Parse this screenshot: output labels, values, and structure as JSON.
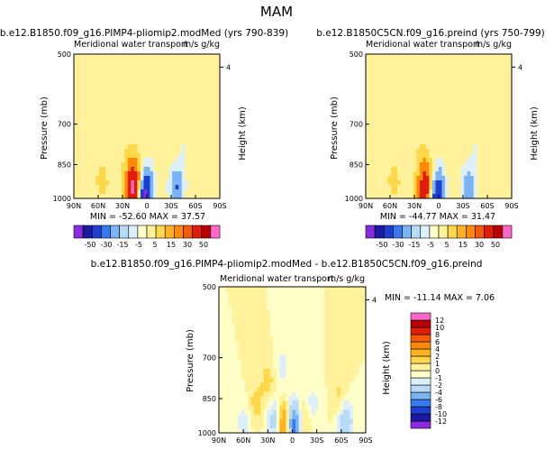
{
  "figure_title": "MAM",
  "colors": {
    "palette_main": [
      "#8a2be2",
      "#1a1aa0",
      "#1e3ed0",
      "#3a78f0",
      "#7ab4f5",
      "#b8dcf8",
      "#dbeffc",
      "#ffffc8",
      "#fff29a",
      "#ffd84a",
      "#ffb320",
      "#ff8a0a",
      "#f55a0a",
      "#e01c0a",
      "#b80000",
      "#ff66cc"
    ],
    "palette_diff": [
      "#8a2be2",
      "#1a1aa0",
      "#1e3ed0",
      "#3a78f0",
      "#7ab4f5",
      "#b8dcf8",
      "#dbeffc",
      "#ffffc8",
      "#fff29a",
      "#ffd84a",
      "#ffb320",
      "#ff8a0a",
      "#f55a0a",
      "#e01c0a",
      "#b80000",
      "#ff66cc"
    ]
  },
  "chart_data": [
    {
      "type": "heatmap",
      "id": "panel-a",
      "title": "b.e12.B1850.f09_g16.PIMP4-pliomip2.modMed (yrs 790-839)",
      "subtitle": "Meridional water transport",
      "units": "m/s g/kg",
      "ylabel": "Pressure (mb)",
      "y2label": "Height (km)",
      "xticks": [
        "90N",
        "60N",
        "30N",
        "0",
        "30S",
        "60S",
        "90S"
      ],
      "yticks": [
        "500",
        "700",
        "850",
        "1000"
      ],
      "y2ticks": [
        "4"
      ],
      "xlim": [
        90,
        -90
      ],
      "ylim": [
        1000,
        500
      ],
      "stats_text": "MIN = -52.60   MAX =  37.57",
      "levels": [
        -50,
        -30,
        -15,
        -5,
        5,
        15,
        30,
        50
      ],
      "colorbar_labels": [
        "-50",
        "-30",
        "-15",
        "-5",
        "5",
        "15",
        "30",
        "50"
      ],
      "colorbar_orientation": "horizontal",
      "features": [
        {
          "lat": 18,
          "p": 985,
          "value": 37.57
        },
        {
          "lat": 14,
          "p": 940,
          "value": 30
        },
        {
          "lat": 20,
          "p": 870,
          "value": 10
        },
        {
          "lat": 3,
          "p": 985,
          "value": -52.6
        },
        {
          "lat": -3,
          "p": 920,
          "value": -15
        },
        {
          "lat": -37,
          "p": 960,
          "value": -30
        },
        {
          "lat": -45,
          "p": 820,
          "value": -5
        },
        {
          "lat": -42,
          "p": 600,
          "value": -5
        },
        {
          "lat": -12,
          "p": 880,
          "value": 6
        },
        {
          "lat": 55,
          "p": 940,
          "value": 8
        },
        {
          "lat": 42,
          "p": 740,
          "value": 4
        }
      ]
    },
    {
      "type": "heatmap",
      "id": "panel-b",
      "title": "b.e12.B1850C5CN.f09_g16.preind (yrs 750-799)",
      "subtitle": "Meridional water transport",
      "units": "m/s g/kg",
      "ylabel": "Pressure (mb)",
      "y2label": "Height (km)",
      "xticks": [
        "90N",
        "60N",
        "30N",
        "0",
        "30S",
        "60S",
        "90S"
      ],
      "yticks": [
        "500",
        "700",
        "850",
        "1000"
      ],
      "y2ticks": [
        "4"
      ],
      "xlim": [
        90,
        -90
      ],
      "ylim": [
        1000,
        500
      ],
      "stats_text": "MIN = -44.77   MAX =  31.47",
      "levels": [
        -50,
        -30,
        -15,
        -5,
        5,
        15,
        30,
        50
      ],
      "colorbar_labels": [
        "-50",
        "-30",
        "-15",
        "-5",
        "5",
        "15",
        "30",
        "50"
      ],
      "colorbar_orientation": "horizontal",
      "features": [
        {
          "lat": 18,
          "p": 985,
          "value": 31.47
        },
        {
          "lat": 14,
          "p": 940,
          "value": 22
        },
        {
          "lat": 20,
          "p": 870,
          "value": 9
        },
        {
          "lat": 3,
          "p": 985,
          "value": -44.77
        },
        {
          "lat": -3,
          "p": 920,
          "value": -12
        },
        {
          "lat": -37,
          "p": 960,
          "value": -25
        },
        {
          "lat": -45,
          "p": 820,
          "value": -5
        },
        {
          "lat": -42,
          "p": 600,
          "value": -5
        },
        {
          "lat": -12,
          "p": 880,
          "value": 6
        },
        {
          "lat": 55,
          "p": 940,
          "value": 8
        },
        {
          "lat": 42,
          "p": 740,
          "value": 4
        }
      ]
    },
    {
      "type": "heatmap",
      "id": "panel-diff",
      "title": "b.e12.B1850.f09_g16.PIMP4-pliomip2.modMed - b.e12.B1850C5CN.f09_g16.preind",
      "subtitle": "Meridional water transport",
      "units": "m/s g/kg",
      "ylabel": "Pressure (mb)",
      "y2label": "Height (km)",
      "xticks": [
        "90N",
        "60N",
        "30N",
        "0",
        "30S",
        "60S",
        "90S"
      ],
      "yticks": [
        "500",
        "700",
        "850",
        "1000"
      ],
      "y2ticks": [
        "4"
      ],
      "xlim": [
        90,
        -90
      ],
      "ylim": [
        1000,
        500
      ],
      "stats_text": "MIN = -11.14   MAX =   7.06",
      "levels": [
        -12,
        -10,
        -8,
        -6,
        -4,
        -2,
        -1,
        0,
        1,
        2,
        4,
        6,
        8,
        10,
        12
      ],
      "colorbar_labels": [
        "-12",
        "-10",
        "-8",
        "-6",
        "-4",
        "-2",
        "-1",
        "0",
        "1",
        "2",
        "4",
        "6",
        "8",
        "10",
        "12"
      ],
      "colorbar_orientation": "vertical",
      "features": [
        {
          "lat": 5,
          "p": 990,
          "value": 7.06
        },
        {
          "lat": 8,
          "p": 960,
          "value": 4
        },
        {
          "lat": 1,
          "p": 985,
          "value": -11.14
        },
        {
          "lat": -2,
          "p": 940,
          "value": -3
        },
        {
          "lat": 22,
          "p": 960,
          "value": -3
        },
        {
          "lat": 30,
          "p": 820,
          "value": 1.5
        },
        {
          "lat": 45,
          "p": 900,
          "value": 1.5
        },
        {
          "lat": 12,
          "p": 780,
          "value": -1.5
        },
        {
          "lat": -12,
          "p": 960,
          "value": 2
        },
        {
          "lat": -25,
          "p": 900,
          "value": -1.5
        },
        {
          "lat": -65,
          "p": 960,
          "value": -4
        },
        {
          "lat": -58,
          "p": 880,
          "value": 1.5
        },
        {
          "lat": 60,
          "p": 960,
          "value": -1.5
        }
      ]
    }
  ]
}
